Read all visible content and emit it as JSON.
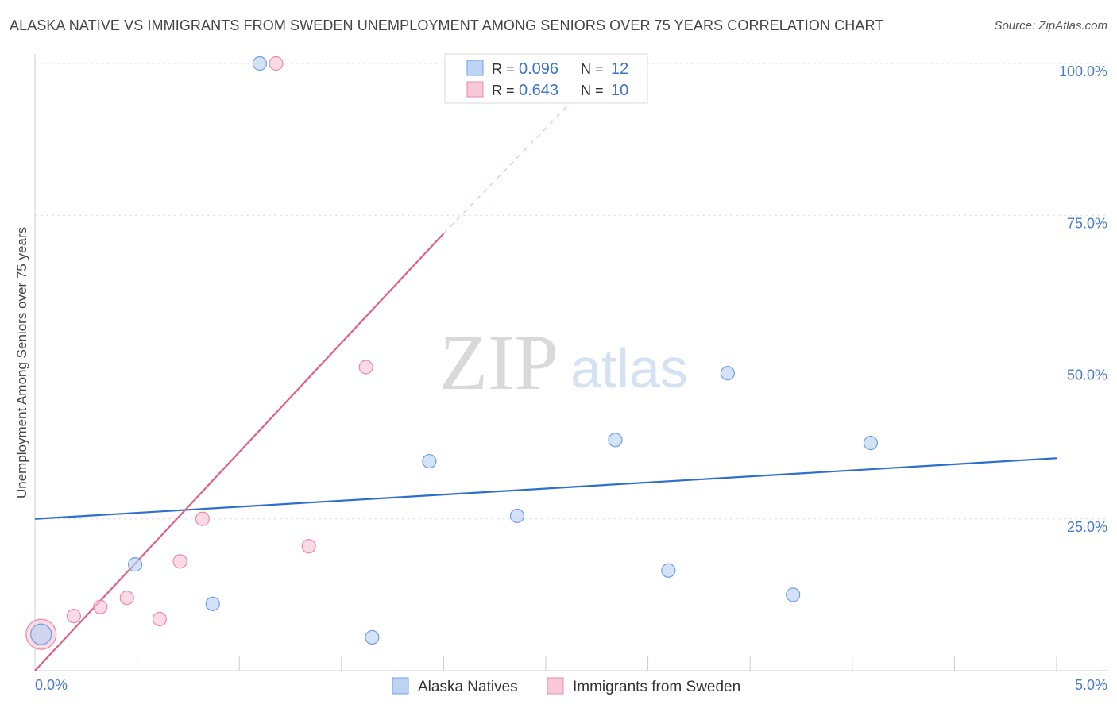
{
  "header": {
    "title": "ALASKA NATIVE VS IMMIGRANTS FROM SWEDEN UNEMPLOYMENT AMONG SENIORS OVER 75 YEARS CORRELATION CHART",
    "source": "Source: ZipAtlas.com"
  },
  "watermark": {
    "part1": "ZIP",
    "part2": "atlas"
  },
  "stats_legend": {
    "rows": [
      {
        "r_label": "R =",
        "r_value": "0.096",
        "n_label": "N =",
        "n_value": "12"
      },
      {
        "r_label": "R =",
        "r_value": "0.643",
        "n_label": "N =",
        "n_value": "10"
      }
    ]
  },
  "chart_data": {
    "type": "scatter",
    "title": "ALASKA NATIVE VS IMMIGRANTS FROM SWEDEN UNEMPLOYMENT AMONG SENIORS OVER 75 YEARS CORRELATION CHART",
    "xlabel": "",
    "ylabel": "Unemployment Among Seniors over 75 years",
    "xlim": [
      0,
      5
    ],
    "ylim": [
      0,
      100
    ],
    "x_tick_labels": [
      "0.0%",
      "5.0%"
    ],
    "y_ticks": [
      25,
      50,
      75,
      100
    ],
    "y_tick_labels": [
      "25.0%",
      "50.0%",
      "75.0%",
      "100.0%"
    ],
    "grid": true,
    "legend_position": "bottom",
    "series": [
      {
        "name": "Alaska Natives",
        "color": "#6f9fe0",
        "fill": "#bcd3f3",
        "points": [
          {
            "x": 0.03,
            "y": 6.0,
            "big": true
          },
          {
            "x": 0.49,
            "y": 17.5
          },
          {
            "x": 0.87,
            "y": 11.0
          },
          {
            "x": 1.1,
            "y": 100.0
          },
          {
            "x": 1.65,
            "y": 5.5
          },
          {
            "x": 1.93,
            "y": 34.5
          },
          {
            "x": 2.36,
            "y": 25.5
          },
          {
            "x": 2.84,
            "y": 38.0
          },
          {
            "x": 3.1,
            "y": 16.5
          },
          {
            "x": 3.39,
            "y": 49.0
          },
          {
            "x": 3.71,
            "y": 12.5
          },
          {
            "x": 4.09,
            "y": 37.5
          }
        ],
        "trend": {
          "x_start": 0.0,
          "y_start": 25.0,
          "x_end": 5.0,
          "y_end": 35.0,
          "color": "#2e6fcc"
        }
      },
      {
        "name": "Immigrants from Sweden",
        "color": "#e88ba8",
        "fill": "#f8c8d7",
        "points": [
          {
            "x": 0.03,
            "y": 6.0,
            "big": true
          },
          {
            "x": 0.19,
            "y": 9.0
          },
          {
            "x": 0.32,
            "y": 10.5
          },
          {
            "x": 0.45,
            "y": 12.0
          },
          {
            "x": 0.61,
            "y": 8.5
          },
          {
            "x": 0.71,
            "y": 18.0
          },
          {
            "x": 0.82,
            "y": 25.0
          },
          {
            "x": 1.18,
            "y": 100.0
          },
          {
            "x": 1.34,
            "y": 20.5
          },
          {
            "x": 1.62,
            "y": 50.0
          }
        ],
        "trend": {
          "x_start": 0.0,
          "y_start": 0.0,
          "x_end": 2.0,
          "y_end": 72.0,
          "x_dash_end": 2.75,
          "y_dash_end": 98.0,
          "color": "#e0608a"
        }
      }
    ]
  }
}
